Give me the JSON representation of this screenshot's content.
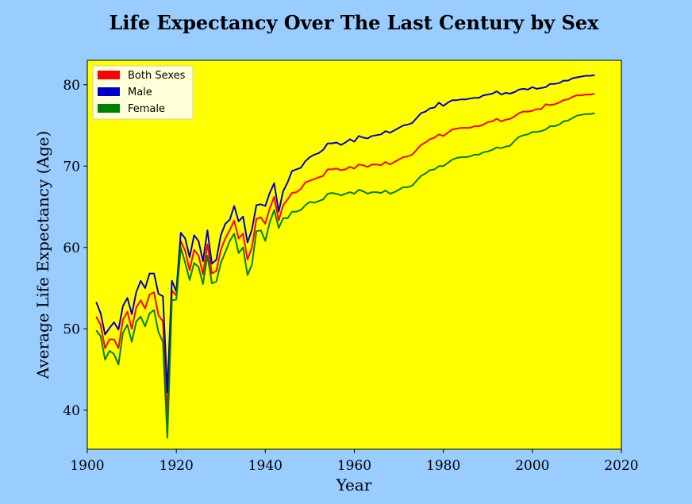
{
  "chart_data": {
    "type": "line",
    "title": "Life Expectancy Over The Last Century by Sex",
    "xlabel": "Year",
    "ylabel": "Average Life Expectancy (Age)",
    "xlim": [
      1900,
      2020
    ],
    "ylim": [
      35.2,
      83.0
    ],
    "xticks": [
      1900,
      1920,
      1940,
      1960,
      1980,
      2000,
      2020
    ],
    "yticks": [
      40,
      50,
      60,
      70,
      80
    ],
    "grid": false,
    "legend_position": "top-left",
    "colors": {
      "page_background": "#99ccff",
      "plot_background": "#ffff00",
      "legend_background": "#ffffd9"
    },
    "x": [
      1902,
      1903,
      1904,
      1905,
      1906,
      1907,
      1908,
      1909,
      1910,
      1911,
      1912,
      1913,
      1914,
      1915,
      1916,
      1917,
      1918,
      1919,
      1920,
      1921,
      1922,
      1923,
      1924,
      1925,
      1926,
      1927,
      1928,
      1929,
      1930,
      1931,
      1932,
      1933,
      1934,
      1935,
      1936,
      1937,
      1938,
      1939,
      1940,
      1941,
      1942,
      1943,
      1944,
      1945,
      1946,
      1947,
      1948,
      1949,
      1950,
      1951,
      1952,
      1953,
      1954,
      1955,
      1956,
      1957,
      1958,
      1959,
      1960,
      1961,
      1962,
      1963,
      1964,
      1965,
      1966,
      1967,
      1968,
      1969,
      1970,
      1971,
      1972,
      1973,
      1974,
      1975,
      1976,
      1977,
      1978,
      1979,
      1980,
      1981,
      1982,
      1983,
      1984,
      1985,
      1986,
      1987,
      1988,
      1989,
      1990,
      1991,
      1992,
      1993,
      1994,
      1995,
      1996,
      1997,
      1998,
      1999,
      2000,
      2001,
      2002,
      2003,
      2004,
      2005,
      2006,
      2007,
      2008,
      2009,
      2010,
      2011,
      2012,
      2013,
      2014
    ],
    "series": [
      {
        "name": "Both Sexes",
        "color": "#ff0000",
        "values": [
          51.5,
          50.5,
          47.6,
          48.7,
          48.7,
          47.6,
          51.1,
          52.1,
          50.0,
          52.6,
          53.5,
          52.5,
          54.2,
          54.5,
          51.7,
          50.9,
          39.1,
          54.7,
          54.1,
          60.8,
          59.6,
          57.2,
          59.7,
          59.0,
          56.7,
          60.4,
          56.8,
          57.1,
          59.7,
          61.1,
          62.1,
          63.3,
          61.1,
          61.7,
          58.5,
          60.0,
          63.5,
          63.7,
          62.9,
          64.8,
          66.2,
          63.3,
          65.2,
          65.9,
          66.7,
          66.8,
          67.2,
          68.0,
          68.2,
          68.4,
          68.6,
          68.8,
          69.6,
          69.6,
          69.7,
          69.5,
          69.6,
          69.9,
          69.7,
          70.2,
          70.1,
          69.9,
          70.2,
          70.2,
          70.1,
          70.5,
          70.2,
          70.5,
          70.8,
          71.1,
          71.2,
          71.4,
          72.0,
          72.6,
          72.9,
          73.3,
          73.5,
          73.9,
          73.7,
          74.1,
          74.5,
          74.6,
          74.7,
          74.7,
          74.7,
          74.9,
          74.9,
          75.1,
          75.4,
          75.5,
          75.8,
          75.5,
          75.7,
          75.8,
          76.1,
          76.5,
          76.7,
          76.7,
          76.8,
          77.0,
          77.0,
          77.6,
          77.5,
          77.6,
          77.8,
          78.1,
          78.2,
          78.5,
          78.7,
          78.7,
          78.8,
          78.8,
          78.9
        ]
      },
      {
        "name": "Male",
        "color": "#0000cc",
        "values": [
          53.3,
          51.9,
          49.3,
          50.1,
          50.8,
          49.9,
          52.8,
          53.8,
          51.8,
          54.5,
          55.9,
          55.0,
          56.8,
          56.8,
          54.3,
          54.0,
          42.2,
          55.9,
          54.6,
          61.8,
          61.1,
          58.8,
          61.5,
          60.8,
          58.3,
          62.1,
          58.0,
          58.5,
          61.5,
          62.9,
          63.4,
          65.1,
          63.2,
          63.8,
          60.6,
          62.2,
          65.2,
          65.3,
          65.1,
          66.7,
          67.9,
          64.4,
          66.9,
          68.0,
          69.4,
          69.6,
          69.8,
          70.6,
          71.1,
          71.4,
          71.6,
          72.0,
          72.8,
          72.8,
          72.9,
          72.6,
          72.9,
          73.3,
          73.0,
          73.7,
          73.5,
          73.4,
          73.7,
          73.8,
          73.9,
          74.3,
          74.1,
          74.4,
          74.7,
          75.0,
          75.1,
          75.3,
          75.9,
          76.5,
          76.7,
          77.1,
          77.2,
          77.8,
          77.4,
          77.8,
          78.1,
          78.1,
          78.2,
          78.2,
          78.3,
          78.4,
          78.4,
          78.7,
          78.8,
          78.9,
          79.2,
          78.8,
          79.0,
          78.9,
          79.1,
          79.4,
          79.5,
          79.4,
          79.7,
          79.5,
          79.6,
          79.7,
          80.1,
          80.1,
          80.2,
          80.5,
          80.5,
          80.8,
          80.9,
          81.0,
          81.1,
          81.1,
          81.2
        ]
      },
      {
        "name": "Female",
        "color": "#008000",
        "values": [
          49.8,
          49.1,
          46.2,
          47.3,
          46.9,
          45.6,
          49.5,
          50.5,
          48.4,
          50.9,
          51.5,
          50.3,
          51.9,
          52.3,
          49.6,
          48.4,
          36.6,
          53.5,
          53.6,
          60.0,
          58.1,
          56.0,
          58.1,
          57.6,
          55.5,
          59.0,
          55.6,
          55.8,
          58.1,
          59.4,
          60.8,
          61.7,
          59.3,
          60.0,
          56.6,
          57.9,
          62.0,
          62.1,
          60.8,
          63.1,
          64.6,
          62.4,
          63.6,
          63.6,
          64.4,
          64.4,
          64.6,
          65.2,
          65.6,
          65.5,
          65.7,
          65.9,
          66.6,
          66.7,
          66.6,
          66.4,
          66.6,
          66.8,
          66.6,
          67.1,
          66.9,
          66.6,
          66.8,
          66.8,
          66.7,
          67.0,
          66.6,
          66.8,
          67.1,
          67.4,
          67.4,
          67.6,
          68.2,
          68.8,
          69.1,
          69.5,
          69.6,
          70.0,
          70.0,
          70.4,
          70.8,
          71.0,
          71.1,
          71.1,
          71.2,
          71.4,
          71.4,
          71.7,
          71.8,
          72.0,
          72.3,
          72.2,
          72.4,
          72.5,
          73.1,
          73.6,
          73.8,
          73.9,
          74.2,
          74.2,
          74.3,
          74.5,
          74.9,
          74.9,
          75.1,
          75.5,
          75.6,
          75.9,
          76.2,
          76.3,
          76.4,
          76.4,
          76.5
        ]
      }
    ]
  }
}
